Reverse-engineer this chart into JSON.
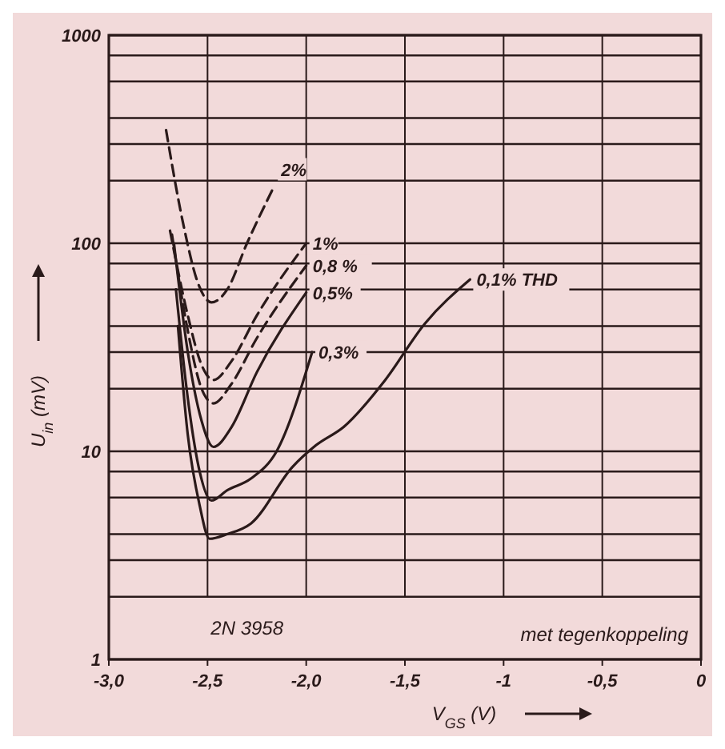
{
  "chart_data": {
    "type": "line",
    "xlabel": "V$_{GS}$ (V)",
    "ylabel": "U$_{in}$ (mV)",
    "log": "y",
    "grid": true,
    "marker": "none",
    "xlim": [
      -3,
      0
    ],
    "ylim": [
      1,
      1000
    ],
    "xticks": [
      {
        "value": -3,
        "label": "-3,0"
      },
      {
        "value": -2.5,
        "label": "-2,5"
      },
      {
        "value": -2,
        "label": "-2,0"
      },
      {
        "value": -1.5,
        "label": "-1,5"
      },
      {
        "value": -1,
        "label": "-1"
      },
      {
        "value": -0.5,
        "label": "-0,5"
      },
      0
    ],
    "yticks": [
      1,
      {
        "value": 2,
        "label": null
      },
      {
        "value": 3,
        "label": null
      },
      {
        "value": 4,
        "label": null
      },
      {
        "value": 6,
        "label": null
      },
      {
        "value": 8,
        "label": null
      },
      10,
      {
        "value": 20,
        "label": null
      },
      {
        "value": 30,
        "label": null
      },
      {
        "value": 40,
        "label": null
      },
      {
        "value": 60,
        "label": null
      },
      {
        "value": 80,
        "label": null
      },
      100,
      {
        "value": 200,
        "label": null
      },
      {
        "value": 300,
        "label": null
      },
      {
        "value": 400,
        "label": null
      },
      {
        "value": 600,
        "label": null
      },
      {
        "value": 800,
        "label": null
      },
      1000
    ],
    "series": [
      {
        "name": "2%",
        "color": "#2a1a1a",
        "line_style": "dashed",
        "x": [
          -2.71,
          -2.62,
          -2.55,
          -2.48,
          -2.4,
          -2.3,
          -2.16
        ],
        "values": [
          350,
          120,
          65,
          52,
          60,
          100,
          190
        ]
      },
      {
        "name": "1%",
        "color": "#2a1a1a",
        "line_style": "dashed",
        "x": [
          -2.69,
          -2.6,
          -2.53,
          -2.47,
          -2.38,
          -2.25,
          -2.0
        ],
        "values": [
          115,
          45,
          26,
          22,
          27,
          45,
          100
        ]
      },
      {
        "name": "0,8 %",
        "color": "#2a1a1a",
        "line_style": "dashed",
        "x": [
          -2.68,
          -2.6,
          -2.53,
          -2.47,
          -2.38,
          -2.25,
          -2.0
        ],
        "values": [
          110,
          38,
          20,
          17,
          21,
          35,
          78
        ]
      },
      {
        "name": "0,5%",
        "color": "#2a1a1a",
        "line_style": "solid",
        "x": [
          -2.67,
          -2.6,
          -2.53,
          -2.47,
          -2.38,
          -2.25,
          -2.0
        ],
        "values": [
          100,
          30,
          14,
          10.5,
          13,
          24,
          58
        ]
      },
      {
        "name": "0,3%",
        "color": "#2a1a1a",
        "line_style": "solid",
        "x": [
          -2.66,
          -2.6,
          -2.54,
          -2.48,
          -2.4,
          -2.28,
          -2.15,
          -1.97
        ],
        "values": [
          60,
          18,
          8,
          5.8,
          6.5,
          7.4,
          10,
          30
        ]
      },
      {
        "name": "0,1% THD",
        "color": "#2a1a1a",
        "line_style": "solid",
        "x": [
          -2.65,
          -2.6,
          -2.54,
          -2.49,
          -2.4,
          -2.28,
          -2.07,
          -1.95,
          -1.81,
          -1.6,
          -1.4,
          -1.17
        ],
        "values": [
          40,
          12,
          5.5,
          3.8,
          4,
          4.5,
          8.4,
          10.7,
          13.1,
          22,
          41,
          67
        ]
      }
    ],
    "annotations": [
      "2N 3958",
      "met tegenkoppeling"
    ]
  }
}
